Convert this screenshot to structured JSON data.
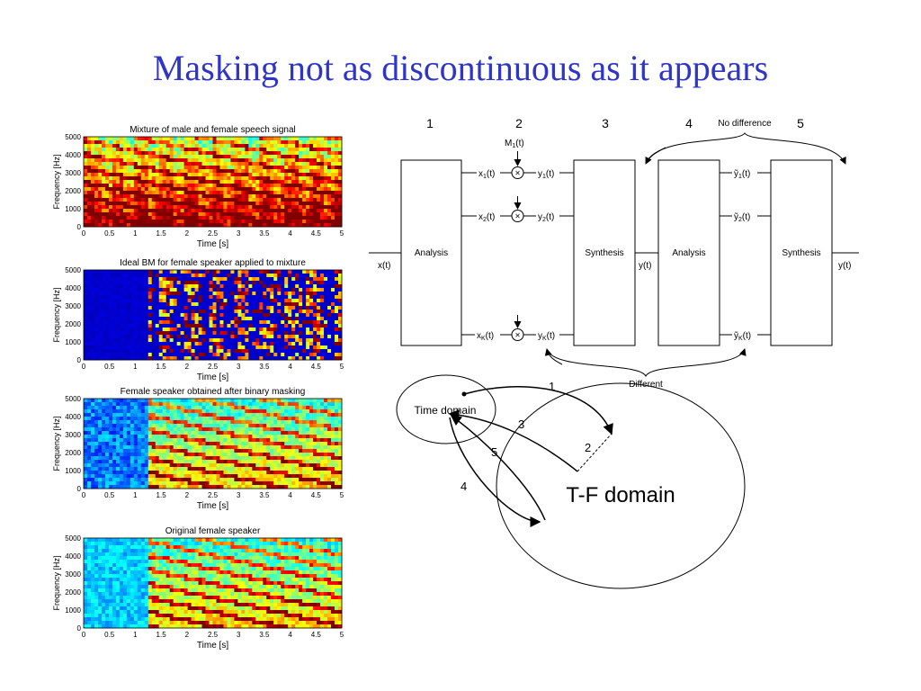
{
  "slide": {
    "title": "Masking not as discontinuous as it appears"
  },
  "spectrograms": [
    {
      "title": "Mixture of male and female speech signal",
      "pattern": "mixture"
    },
    {
      "title": "Ideal BM for female speaker applied to mixture",
      "pattern": "mask"
    },
    {
      "title": "Female speaker obtained after binary masking",
      "pattern": "masked"
    },
    {
      "title": "Original female speaker",
      "pattern": "original"
    }
  ],
  "axes": {
    "ylabel": "Frequency [Hz]",
    "xlabel": "Time [s]",
    "yticks": [
      "5000",
      "4000",
      "3000",
      "2000",
      "1000",
      "0"
    ],
    "xticks": [
      "0",
      "0.5",
      "1",
      "1.5",
      "2",
      "2.5",
      "3",
      "3.5",
      "4",
      "4.5",
      "5"
    ]
  },
  "diagram": {
    "stage_numbers": [
      "1",
      "2",
      "3",
      "4",
      "5"
    ],
    "input": "x(t)",
    "analysis_label": "Analysis",
    "synthesis_label": "Synthesis",
    "output": "y(t)",
    "mask_label": "M",
    "mask_sub": "1",
    "mask_suffix": "(t)",
    "x_channels": [
      {
        "main": "x",
        "sub": "1",
        "suffix": "(t)"
      },
      {
        "main": "x",
        "sub": "2",
        "suffix": "(t)"
      },
      {
        "main": "x",
        "sub": "K",
        "suffix": "(t)"
      }
    ],
    "y_channels": [
      {
        "main": "y",
        "sub": "1",
        "suffix": "(t)"
      },
      {
        "main": "y",
        "sub": "2",
        "suffix": "(t)"
      },
      {
        "main": "y",
        "sub": "K",
        "suffix": "(t)"
      }
    ],
    "ytilde_channels": [
      {
        "main": "ỹ",
        "sub": "1",
        "suffix": "(t)"
      },
      {
        "main": "ỹ",
        "sub": "2",
        "suffix": "(t)"
      },
      {
        "main": "ỹ",
        "sub": "K",
        "suffix": "(t)"
      }
    ],
    "no_difference": "No difference",
    "different": "Different"
  },
  "domains": {
    "time_domain": "Time domain",
    "tf_domain": "T-F domain",
    "arrow_labels": [
      "1",
      "2",
      "3",
      "4",
      "5"
    ]
  }
}
